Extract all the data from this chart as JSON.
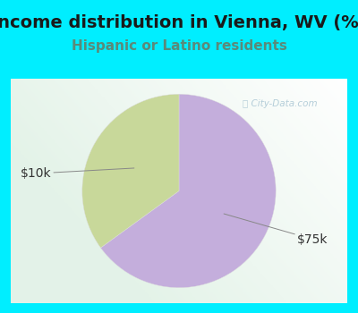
{
  "title": "Income distribution in Vienna, WV (%)",
  "subtitle": "Hispanic or Latino residents",
  "title_color": "#1a1a1a",
  "subtitle_color": "#5a8a7a",
  "background_color": "#00EEFF",
  "chart_bg_left": "#c8e8d0",
  "chart_bg_right": "#f0f0f8",
  "slices": [
    {
      "label": "$75k",
      "value": 65,
      "color": "#C4AEDC"
    },
    {
      "label": "$10k",
      "value": 35,
      "color": "#C8D89A"
    }
  ],
  "label_color": "#333333",
  "label_fontsize": 10,
  "title_fontsize": 14,
  "subtitle_fontsize": 11,
  "startangle": 90,
  "watermark": "City-Data.com",
  "watermark_color": "#99BBCC",
  "watermark_alpha": 0.7
}
